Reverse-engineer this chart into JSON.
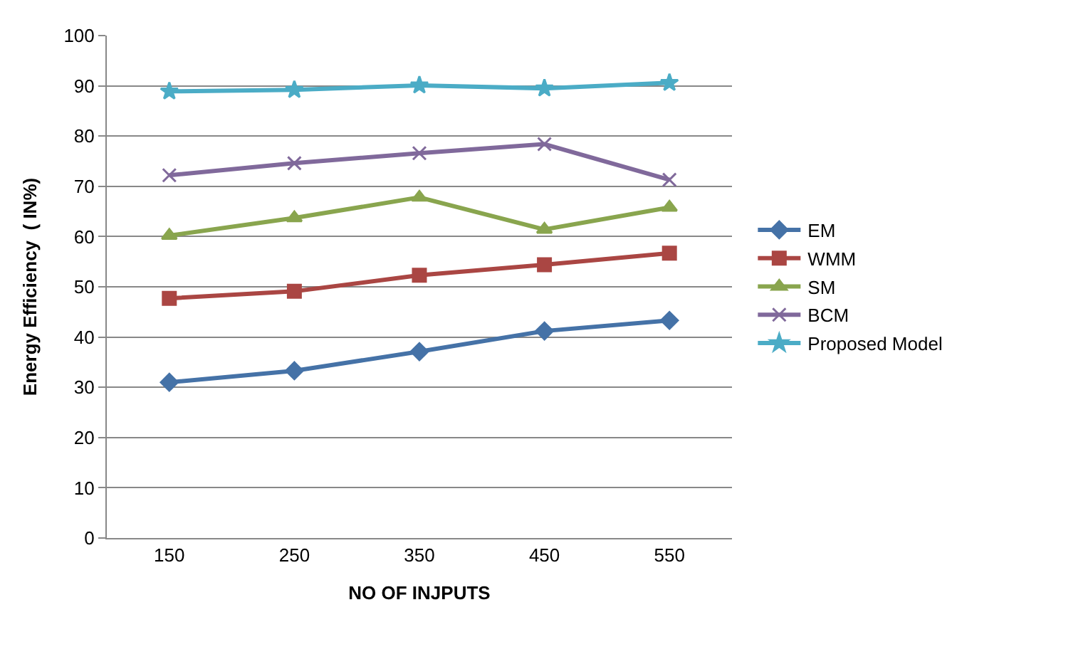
{
  "chart_data": {
    "type": "line",
    "xlabel": "NO OF INJPUTS",
    "ylabel": "Energy Efficiency  ( IN%)",
    "categories": [
      "150",
      "250",
      "350",
      "450",
      "550"
    ],
    "series": [
      {
        "name": "EM",
        "color": "#4572a7",
        "marker": "diamond",
        "values": [
          31,
          33.3,
          37.1,
          41.2,
          43.3
        ]
      },
      {
        "name": "WMM",
        "color": "#aa4643",
        "marker": "square",
        "values": [
          47.7,
          49.1,
          52.3,
          54.4,
          56.7
        ]
      },
      {
        "name": "SM",
        "color": "#89a54e",
        "marker": "triangle",
        "values": [
          60.2,
          63.7,
          67.8,
          61.4,
          65.8
        ]
      },
      {
        "name": "BCM",
        "color": "#80699b",
        "marker": "cross",
        "values": [
          72.2,
          74.6,
          76.6,
          78.4,
          71.3
        ]
      },
      {
        "name": "Proposed Model",
        "color": "#4bacc6",
        "marker": "star",
        "values": [
          88.9,
          89.2,
          90.1,
          89.5,
          90.6
        ]
      }
    ],
    "ylim": [
      0,
      100
    ],
    "yticks": [
      0,
      10,
      20,
      30,
      40,
      50,
      60,
      70,
      80,
      90,
      100
    ],
    "grid": "y",
    "legend": "right",
    "line_style": "solid"
  }
}
